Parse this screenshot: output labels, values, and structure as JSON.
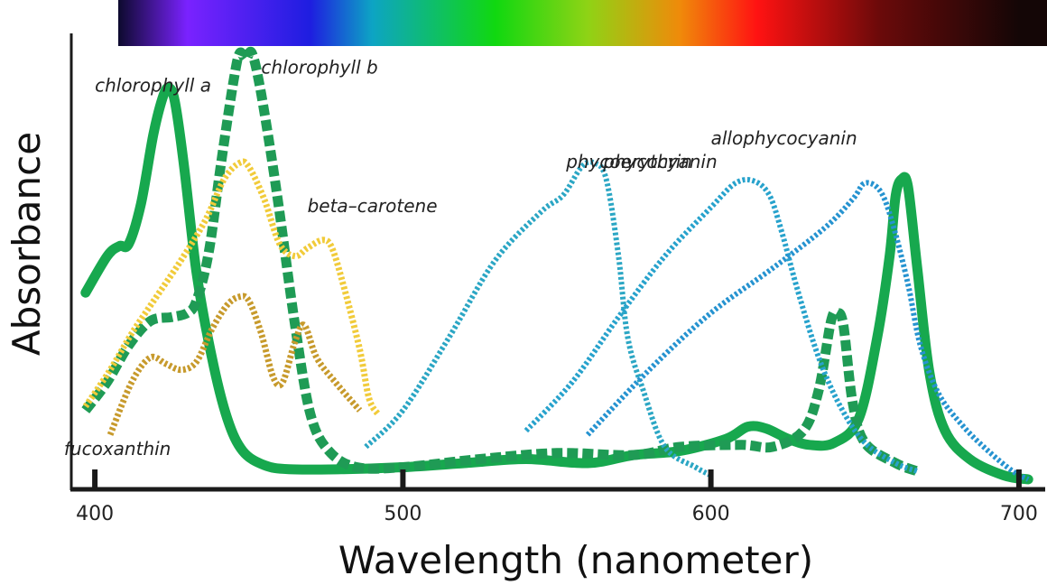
{
  "chart_data": {
    "type": "line",
    "xlabel": "Wavelength (nanometer)",
    "ylabel": "Absorbance",
    "xlim": [
      395,
      705
    ],
    "ylim": [
      0,
      1.07
    ],
    "x_ticks": [
      400,
      500,
      600,
      700
    ],
    "grid": false,
    "legend": "inline labels",
    "spectrum_bar": {
      "stops": [
        {
          "nm": 400,
          "color": "#0d0a2e"
        },
        {
          "nm": 430,
          "color": "#7a22ff"
        },
        {
          "nm": 470,
          "color": "#1e1ee0"
        },
        {
          "nm": 490,
          "color": "#0da4c4"
        },
        {
          "nm": 530,
          "color": "#10d810"
        },
        {
          "nm": 560,
          "color": "#8fd315"
        },
        {
          "nm": 590,
          "color": "#f08a0a"
        },
        {
          "nm": 615,
          "color": "#ff1212"
        },
        {
          "nm": 655,
          "color": "#6a0a0a"
        },
        {
          "nm": 700,
          "color": "#140606"
        }
      ]
    },
    "series": [
      {
        "name": "chlorophyll a",
        "color": "#17a84e",
        "dash": "solid",
        "width": 11,
        "label_at": [
          400,
          0.955
        ],
        "points": [
          [
            397,
            0.46
          ],
          [
            404,
            0.55
          ],
          [
            408,
            0.575
          ],
          [
            411,
            0.58
          ],
          [
            415,
            0.68
          ],
          [
            419,
            0.85
          ],
          [
            422,
            0.94
          ],
          [
            424,
            0.965
          ],
          [
            426,
            0.93
          ],
          [
            429,
            0.77
          ],
          [
            433,
            0.51
          ],
          [
            438,
            0.3
          ],
          [
            443,
            0.15
          ],
          [
            448,
            0.07
          ],
          [
            455,
            0.035
          ],
          [
            463,
            0.025
          ],
          [
            480,
            0.025
          ],
          [
            500,
            0.03
          ],
          [
            520,
            0.04
          ],
          [
            540,
            0.05
          ],
          [
            560,
            0.04
          ],
          [
            575,
            0.06
          ],
          [
            590,
            0.07
          ],
          [
            605,
            0.1
          ],
          [
            612,
            0.13
          ],
          [
            618,
            0.125
          ],
          [
            625,
            0.1
          ],
          [
            632,
            0.085
          ],
          [
            640,
            0.09
          ],
          [
            648,
            0.15
          ],
          [
            654,
            0.35
          ],
          [
            658,
            0.55
          ],
          [
            660,
            0.7
          ],
          [
            662,
            0.74
          ],
          [
            664,
            0.72
          ],
          [
            667,
            0.52
          ],
          [
            671,
            0.26
          ],
          [
            676,
            0.12
          ],
          [
            684,
            0.05
          ],
          [
            695,
            0.01
          ],
          [
            703,
            0.0
          ]
        ]
      },
      {
        "name": "chlorophyll b",
        "color": "#1f9b55",
        "dash": "dashed",
        "width": 11,
        "label_at": [
          454,
          1.0
        ],
        "points": [
          [
            397,
            0.17
          ],
          [
            404,
            0.24
          ],
          [
            411,
            0.33
          ],
          [
            418,
            0.39
          ],
          [
            425,
            0.4
          ],
          [
            430,
            0.41
          ],
          [
            433,
            0.44
          ],
          [
            437,
            0.56
          ],
          [
            441,
            0.78
          ],
          [
            445,
            0.98
          ],
          [
            447,
            1.05
          ],
          [
            449,
            1.035
          ],
          [
            451,
            1.05
          ],
          [
            454,
            0.95
          ],
          [
            459,
            0.71
          ],
          [
            465,
            0.38
          ],
          [
            470,
            0.16
          ],
          [
            476,
            0.07
          ],
          [
            485,
            0.03
          ],
          [
            500,
            0.03
          ],
          [
            525,
            0.05
          ],
          [
            550,
            0.065
          ],
          [
            575,
            0.06
          ],
          [
            590,
            0.08
          ],
          [
            610,
            0.085
          ],
          [
            620,
            0.08
          ],
          [
            630,
            0.12
          ],
          [
            635,
            0.22
          ],
          [
            639,
            0.39
          ],
          [
            641,
            0.41
          ],
          [
            643,
            0.38
          ],
          [
            646,
            0.19
          ],
          [
            650,
            0.09
          ],
          [
            660,
            0.04
          ],
          [
            667,
            0.02
          ]
        ]
      },
      {
        "name": "beta–carotene",
        "color": "#f1cb3a",
        "dash": "dotted",
        "width": 7,
        "label_at": [
          469,
          0.658
        ],
        "points": [
          [
            397,
            0.18
          ],
          [
            405,
            0.27
          ],
          [
            412,
            0.36
          ],
          [
            420,
            0.45
          ],
          [
            428,
            0.54
          ],
          [
            436,
            0.64
          ],
          [
            442,
            0.74
          ],
          [
            447,
            0.78
          ],
          [
            450,
            0.77
          ],
          [
            455,
            0.69
          ],
          [
            460,
            0.58
          ],
          [
            465,
            0.55
          ],
          [
            469,
            0.57
          ],
          [
            474,
            0.59
          ],
          [
            477,
            0.57
          ],
          [
            481,
            0.47
          ],
          [
            486,
            0.32
          ],
          [
            489,
            0.2
          ],
          [
            492,
            0.16
          ]
        ]
      },
      {
        "name": "fucoxanthin",
        "color": "#c79a2c",
        "dash": "dotted",
        "width": 7,
        "label_at": [
          390,
          0.06
        ],
        "points": [
          [
            405,
            0.11
          ],
          [
            412,
            0.24
          ],
          [
            418,
            0.3
          ],
          [
            423,
            0.285
          ],
          [
            428,
            0.27
          ],
          [
            433,
            0.29
          ],
          [
            438,
            0.37
          ],
          [
            443,
            0.43
          ],
          [
            447,
            0.45
          ],
          [
            450,
            0.44
          ],
          [
            454,
            0.36
          ],
          [
            458,
            0.25
          ],
          [
            461,
            0.24
          ],
          [
            465,
            0.34
          ],
          [
            468,
            0.38
          ],
          [
            472,
            0.3
          ],
          [
            478,
            0.24
          ],
          [
            486,
            0.17
          ]
        ]
      },
      {
        "name": "phycoerythrin",
        "color": "#2ba6c4",
        "dash": "dotted",
        "width": 6,
        "label_at": [
          553,
          0.768
        ],
        "points": [
          [
            488,
            0.08
          ],
          [
            500,
            0.17
          ],
          [
            515,
            0.35
          ],
          [
            530,
            0.54
          ],
          [
            545,
            0.66
          ],
          [
            552,
            0.7
          ],
          [
            558,
            0.77
          ],
          [
            562,
            0.78
          ],
          [
            566,
            0.74
          ],
          [
            570,
            0.55
          ],
          [
            573,
            0.35
          ],
          [
            578,
            0.22
          ],
          [
            585,
            0.08
          ],
          [
            595,
            0.03
          ],
          [
            600,
            0.01
          ]
        ]
      },
      {
        "name": "phycocyanin",
        "color": "#27a2cc",
        "dash": "dotted",
        "width": 6,
        "label_at": [
          565,
          0.768
        ],
        "points": [
          [
            540,
            0.12
          ],
          [
            555,
            0.24
          ],
          [
            570,
            0.4
          ],
          [
            585,
            0.55
          ],
          [
            600,
            0.67
          ],
          [
            608,
            0.73
          ],
          [
            614,
            0.735
          ],
          [
            619,
            0.7
          ],
          [
            623,
            0.61
          ],
          [
            628,
            0.47
          ],
          [
            635,
            0.3
          ],
          [
            642,
            0.18
          ],
          [
            650,
            0.09
          ],
          [
            660,
            0.04
          ],
          [
            667,
            0.02
          ]
        ]
      },
      {
        "name": "allophycocyanin",
        "color": "#2693d0",
        "dash": "dotted",
        "width": 6,
        "label_at": [
          600,
          0.825
        ],
        "points": [
          [
            560,
            0.11
          ],
          [
            580,
            0.27
          ],
          [
            600,
            0.41
          ],
          [
            620,
            0.52
          ],
          [
            637,
            0.62
          ],
          [
            646,
            0.69
          ],
          [
            650,
            0.73
          ],
          [
            655,
            0.71
          ],
          [
            659,
            0.63
          ],
          [
            664,
            0.48
          ],
          [
            668,
            0.33
          ],
          [
            674,
            0.21
          ],
          [
            682,
            0.13
          ],
          [
            690,
            0.07
          ],
          [
            698,
            0.02
          ],
          [
            703,
            0.0
          ]
        ]
      }
    ]
  }
}
